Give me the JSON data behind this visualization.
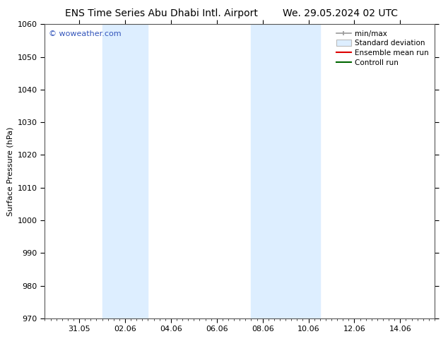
{
  "title_left": "ENS Time Series Abu Dhabi Intl. Airport",
  "title_right": "We. 29.05.2024 02 UTC",
  "ylabel": "Surface Pressure (hPa)",
  "ylim": [
    970,
    1060
  ],
  "yticks": [
    970,
    980,
    990,
    1000,
    1010,
    1020,
    1030,
    1040,
    1050,
    1060
  ],
  "xtick_labels": [
    "31.05",
    "02.06",
    "04.06",
    "06.06",
    "08.06",
    "10.06",
    "12.06",
    "14.06"
  ],
  "xtick_positions": [
    1.0,
    3.0,
    5.0,
    7.0,
    9.0,
    11.0,
    13.0,
    15.0
  ],
  "xlim": [
    -0.5,
    16.5
  ],
  "shaded_bands": [
    {
      "x_start": 2.0,
      "x_end": 4.0
    },
    {
      "x_start": 8.5,
      "x_end": 11.5
    }
  ],
  "watermark": "© woweather.com",
  "watermark_color": "#3355bb",
  "legend_items": [
    {
      "label": "min/max",
      "type": "errorbar",
      "color": "#999999"
    },
    {
      "label": "Standard deviation",
      "type": "patch",
      "color": "#ddeeff",
      "edgecolor": "#bbbbbb"
    },
    {
      "label": "Ensemble mean run",
      "type": "line",
      "color": "#dd0000"
    },
    {
      "label": "Controll run",
      "type": "line",
      "color": "#006600"
    }
  ],
  "background_color": "#ffffff",
  "shaded_color": "#ddeeff",
  "title_fontsize": 10,
  "axis_label_fontsize": 8,
  "tick_fontsize": 8,
  "legend_fontsize": 7.5
}
